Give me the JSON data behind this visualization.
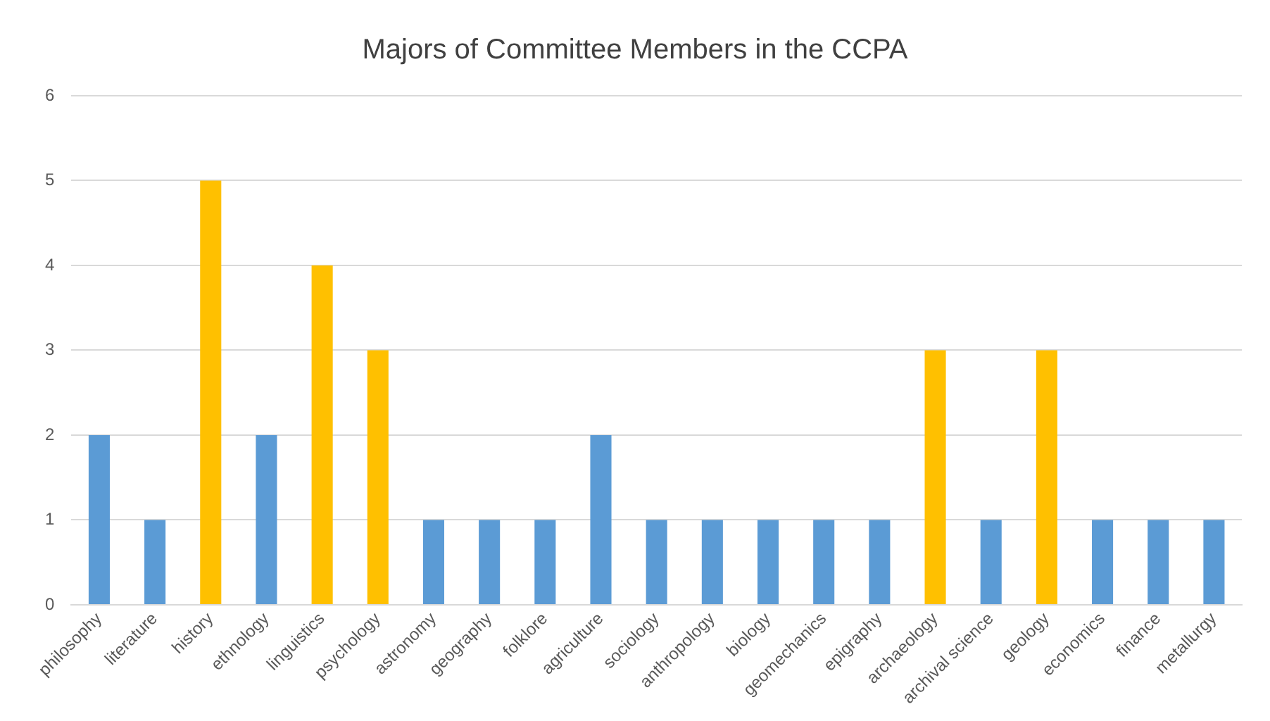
{
  "chart_data": {
    "type": "bar",
    "title": "Majors of Committee Members in the CCPA",
    "categories": [
      "philosophy",
      "literature",
      "history",
      "ethnology",
      "linguistics",
      "psychology",
      "astronomy",
      "geography",
      "folklore",
      "agriculture",
      "sociology",
      "anthropology",
      "biology",
      "geomechanics",
      "epigraphy",
      "archaeology",
      "archival science",
      "geology",
      "economics",
      "finance",
      "metallurgy"
    ],
    "values": [
      2,
      1,
      5,
      2,
      4,
      3,
      1,
      1,
      1,
      2,
      1,
      1,
      1,
      1,
      1,
      3,
      1,
      3,
      1,
      1,
      1
    ],
    "colors": [
      "#5b9bd5",
      "#5b9bd5",
      "#ffc000",
      "#5b9bd5",
      "#ffc000",
      "#ffc000",
      "#5b9bd5",
      "#5b9bd5",
      "#5b9bd5",
      "#5b9bd5",
      "#5b9bd5",
      "#5b9bd5",
      "#5b9bd5",
      "#5b9bd5",
      "#5b9bd5",
      "#ffc000",
      "#5b9bd5",
      "#ffc000",
      "#5b9bd5",
      "#5b9bd5",
      "#5b9bd5"
    ],
    "ylim": [
      0,
      6
    ],
    "yticks": [
      0,
      1,
      2,
      3,
      4,
      5,
      6
    ],
    "grid": "y",
    "legend": false
  }
}
